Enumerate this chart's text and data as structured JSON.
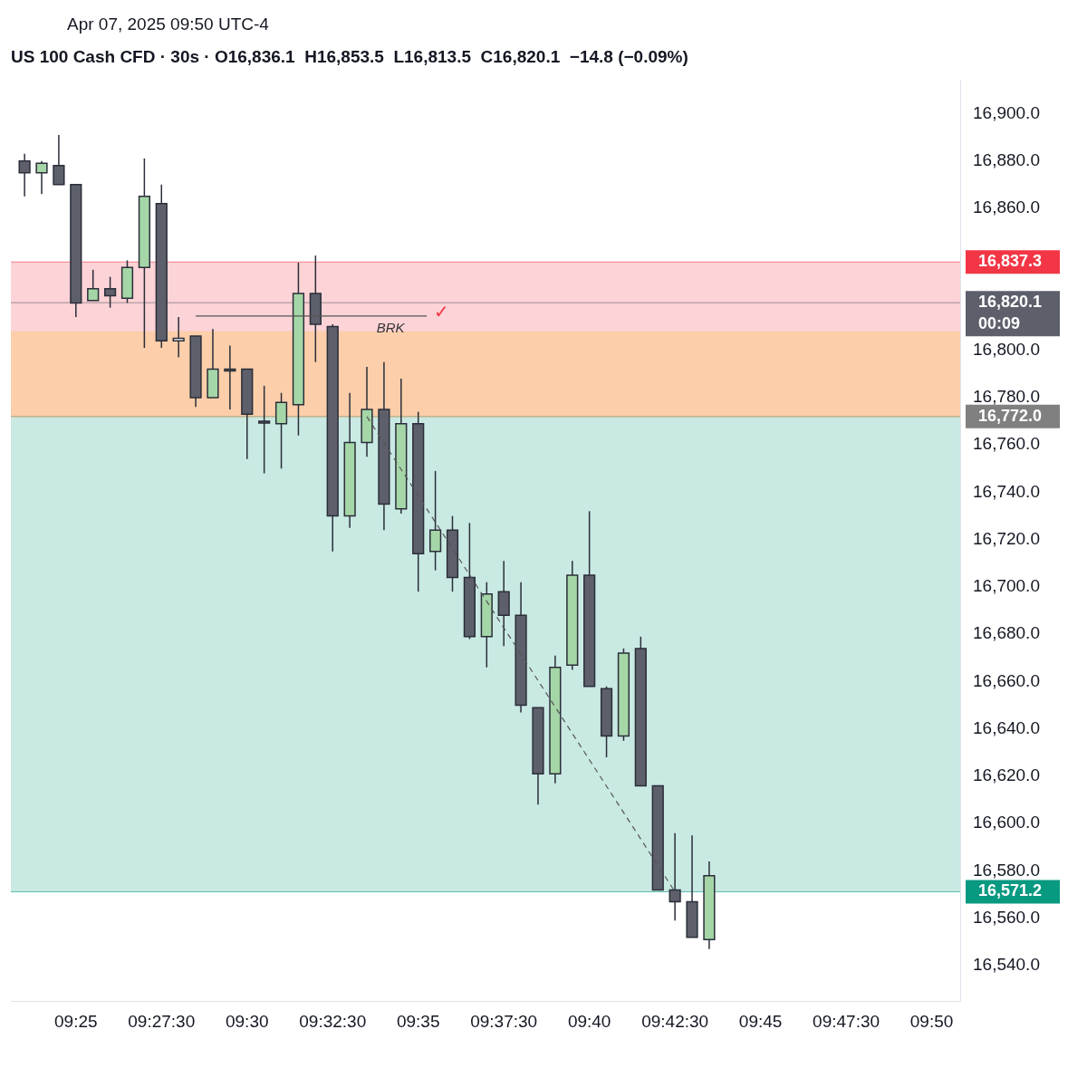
{
  "chart_data": {
    "type": "candlestick",
    "title": "US 100 Cash CFD · 30s · O16,836.1  H16,853.5  L16,813.5  C16,820.1  −14.8 (−0.09%)",
    "subtitle": "Apr 07, 2025 09:50 UTC-4",
    "x": [
      9.391667,
      9.4,
      9.408333,
      9.416667,
      9.425,
      9.433333,
      9.441667,
      9.45,
      9.458333,
      9.466667,
      9.475,
      9.483333,
      9.491667,
      9.5,
      9.508333,
      9.516667,
      9.525,
      9.533333,
      9.541667,
      9.55,
      9.558333,
      9.566667,
      9.575,
      9.583333,
      9.591667,
      9.6,
      9.608333,
      9.616667,
      9.625,
      9.633333,
      9.641667,
      9.65,
      9.658333,
      9.666667,
      9.675,
      9.683333,
      9.691667,
      9.7,
      9.708333,
      9.716667,
      9.725
    ],
    "ohlc": [
      [
        16880,
        16883,
        16865,
        16875
      ],
      [
        16875,
        16880,
        16866,
        16879
      ],
      [
        16878,
        16891,
        16870,
        16870
      ],
      [
        16870,
        16870,
        16814,
        16820
      ],
      [
        16821,
        16834,
        16821,
        16826
      ],
      [
        16826,
        16831,
        16818,
        16823
      ],
      [
        16822,
        16838,
        16820,
        16835
      ],
      [
        16835,
        16881,
        16801,
        16865
      ],
      [
        16862,
        16870,
        16801,
        16804
      ],
      [
        16804,
        16814,
        16797,
        16805
      ],
      [
        16806,
        16806,
        16776,
        16780
      ],
      [
        16780,
        16809,
        16780,
        16792
      ],
      [
        16792,
        16802,
        16775,
        16792
      ],
      [
        16792,
        16792,
        16754,
        16773
      ],
      [
        16770,
        16785,
        16748,
        16770
      ],
      [
        16769,
        16782,
        16750,
        16778
      ],
      [
        16777,
        16837,
        16764,
        16824
      ],
      [
        16824,
        16840,
        16795,
        16811
      ],
      [
        16810,
        16811,
        16715,
        16730
      ],
      [
        16730,
        16782,
        16725,
        16761
      ],
      [
        16761,
        16793,
        16755,
        16775
      ],
      [
        16775,
        16795,
        16724,
        16735
      ],
      [
        16733,
        16788,
        16731,
        16769
      ],
      [
        16769,
        16774,
        16698,
        16714
      ],
      [
        16715,
        16749,
        16707,
        16724
      ],
      [
        16724,
        16730,
        16698,
        16704
      ],
      [
        16704,
        16727,
        16678,
        16679
      ],
      [
        16679,
        16702,
        16666,
        16697
      ],
      [
        16698,
        16711,
        16675,
        16688
      ],
      [
        16688,
        16702,
        16647,
        16650
      ],
      [
        16649,
        16649,
        16608,
        16621
      ],
      [
        16621,
        16671,
        16617,
        16666
      ],
      [
        16667,
        16711,
        16665,
        16705
      ],
      [
        16705,
        16732,
        16658,
        16658
      ],
      [
        16657,
        16658,
        16628,
        16637
      ],
      [
        16637,
        16674,
        16635,
        16672
      ],
      [
        16674,
        16679,
        16616,
        16616
      ],
      [
        16616,
        16616,
        16572,
        16572
      ],
      [
        16572,
        16596,
        16559,
        16567
      ],
      [
        16567,
        16595,
        16552,
        16552
      ],
      [
        16551,
        16584,
        16547,
        16578
      ]
    ],
    "colors": [
      "#5d606b",
      "#a5d6a7",
      "#5d606b",
      "#5d606b",
      "#a5d6a7",
      "#5d606b",
      "#a5d6a7",
      "#a5d6a7",
      "#5d606b",
      "#ffffff",
      "#5d606b",
      "#a5d6a7",
      "#5d606b",
      "#5d606b",
      "#5d606b",
      "#a5d6a7",
      "#a5d6a7",
      "#5d606b",
      "#5d606b",
      "#a5d6a7",
      "#a5d6a7",
      "#5d606b",
      "#a5d6a7",
      "#5d606b",
      "#a5d6a7",
      "#5d606b",
      "#5d606b",
      "#a5d6a7",
      "#5d606b",
      "#5d606b",
      "#5d606b",
      "#a5d6a7",
      "#a5d6a7",
      "#5d606b",
      "#5d606b",
      "#a5d6a7",
      "#5d606b",
      "#5d606b",
      "#5d606b",
      "#5d606b",
      "#a5d6a7"
    ],
    "series": [
      {
        "type": "line",
        "x": [
          9.558333,
          9.708333
        ],
        "values": [
          16772,
          16571.2
        ],
        "color": "#555555",
        "line_style": "dashed"
      },
      {
        "type": "line",
        "x": [
          9.475,
          9.5875
        ],
        "values": [
          16814.5,
          16814.5
        ],
        "color": "#555555",
        "line_style": "solid"
      }
    ],
    "bands": [
      {
        "axis": "y",
        "from": 16772,
        "to": 16837.3,
        "color": "#f23645"
      },
      {
        "axis": "y",
        "from": 16571.2,
        "to": 16772,
        "color": "#089981"
      },
      {
        "axis": "y",
        "from": 16771.5,
        "to": 16808,
        "color": "#ffc107"
      }
    ],
    "ref_lines": [
      {
        "axis": "y",
        "value": 16837.3,
        "label": "16,837.3",
        "color": "#f23645"
      },
      {
        "axis": "y",
        "value": 16820.1,
        "label": "16,820.1\n00:09",
        "color": "#5d606b"
      },
      {
        "axis": "y",
        "value": 16772,
        "label": "16,772.0",
        "color": "#808080"
      },
      {
        "axis": "y",
        "value": 16571.2,
        "label": "16,571.2",
        "color": "#089981"
      }
    ],
    "annotations": [
      {
        "text": "✓",
        "x": 9.5875,
        "y": 16814.5
      },
      "BRK"
    ],
    "xlim": [
      9.385,
      9.8472
    ],
    "ylim": [
      16525,
      16914
    ],
    "xticks": [
      {
        "value": 9.416667,
        "label": "09:25"
      },
      {
        "value": 9.458333,
        "label": "09:27:30"
      },
      {
        "value": 9.5,
        "label": "09:30"
      },
      {
        "value": 9.541667,
        "label": "09:32:30"
      },
      {
        "value": 9.583333,
        "label": "09:35"
      },
      {
        "value": 9.625,
        "label": "09:37:30"
      },
      {
        "value": 9.666667,
        "label": "09:40"
      },
      {
        "value": 9.708333,
        "label": "09:42:30"
      },
      {
        "value": 9.75,
        "label": "09:45"
      },
      {
        "value": 9.791667,
        "label": "09:47:30"
      },
      {
        "value": 9.833333,
        "label": "09:50"
      }
    ],
    "yticks": [
      {
        "value": 16540,
        "label": "16,540.0"
      },
      {
        "value": 16560,
        "label": "16,560.0"
      },
      {
        "value": 16580,
        "label": "16,580.0"
      },
      {
        "value": 16600,
        "label": "16,600.0"
      },
      {
        "value": 16620,
        "label": "16,620.0"
      },
      {
        "value": 16640,
        "label": "16,640.0"
      },
      {
        "value": 16660,
        "label": "16,660.0"
      },
      {
        "value": 16680,
        "label": "16,680.0"
      },
      {
        "value": 16700,
        "label": "16,700.0"
      },
      {
        "value": 16720,
        "label": "16,720.0"
      },
      {
        "value": 16740,
        "label": "16,740.0"
      },
      {
        "value": 16760,
        "label": "16,760.0"
      },
      {
        "value": 16780,
        "label": "16,780.0"
      },
      {
        "value": 16800,
        "label": "16,800.0"
      },
      {
        "value": 16860,
        "label": "16,860.0"
      },
      {
        "value": 16880,
        "label": "16,880.0"
      },
      {
        "value": 16900,
        "label": "16,900.0"
      }
    ],
    "grid": false,
    "legend": false
  }
}
